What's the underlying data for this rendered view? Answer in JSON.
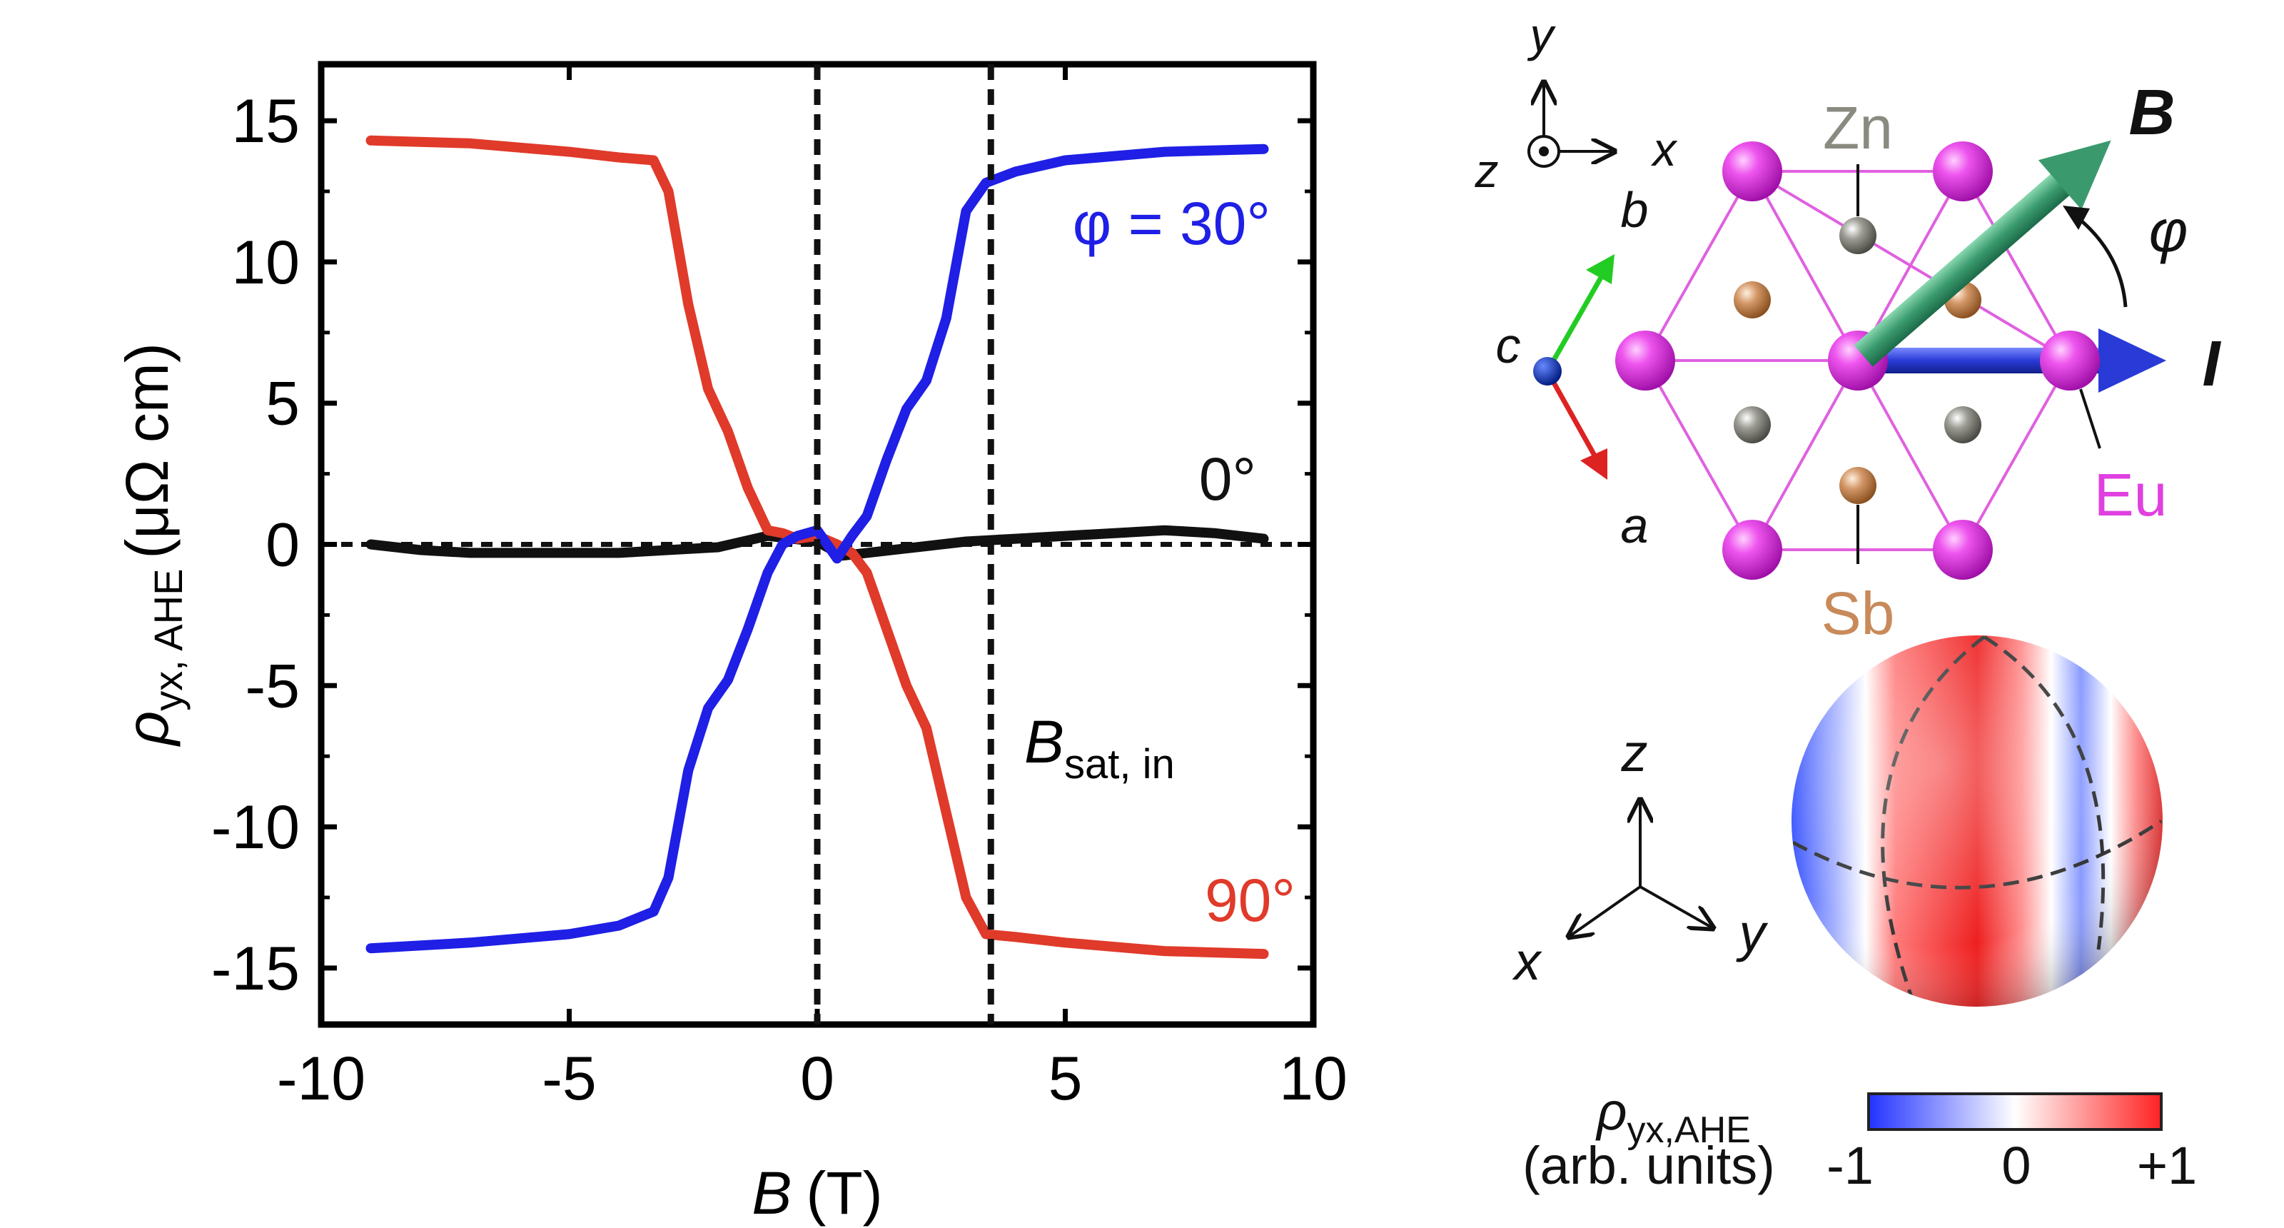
{
  "chart_data": {
    "type": "line",
    "xlabel": {
      "symbol": "B",
      "unit": "(T)"
    },
    "ylabel": {
      "symbol": "ρ",
      "sub": "yx, AHE",
      "unit": "(μΩ cm)"
    },
    "xlim": [
      -10,
      10
    ],
    "ylim": [
      -17,
      17
    ],
    "xticks": [
      -10,
      -5,
      0,
      5,
      10
    ],
    "yticks": [
      15,
      10,
      5,
      0,
      -5,
      -10,
      -15
    ],
    "xtick_labels": [
      "-10",
      "-5",
      "0",
      "5",
      "10"
    ],
    "ytick_labels": [
      "15",
      "10",
      "5",
      "0",
      "-5",
      "-10",
      "-15"
    ],
    "vlines": [
      0,
      3.5
    ],
    "annotation_bsat": {
      "symbol": "B",
      "sub": "sat, in"
    },
    "series": [
      {
        "name": "φ = 30°",
        "color": "#1f1fe6",
        "x": [
          -9,
          -7,
          -5,
          -4,
          -3.3,
          -3.0,
          -2.6,
          -2.2,
          -1.8,
          -1.4,
          -1.0,
          -0.7,
          -0.4,
          0,
          0.4,
          0.7,
          1.0,
          1.4,
          1.8,
          2.2,
          2.6,
          3.0,
          3.4,
          4,
          5,
          7,
          9
        ],
        "y": [
          -14.3,
          -14.1,
          -13.8,
          -13.5,
          -13.0,
          -11.8,
          -8.0,
          -5.8,
          -4.8,
          -3.0,
          -1.0,
          0.0,
          0.3,
          0.5,
          -0.5,
          0.3,
          1.0,
          3.0,
          4.8,
          5.8,
          8.0,
          11.8,
          12.8,
          13.2,
          13.6,
          13.9,
          14.0
        ]
      },
      {
        "name": "90°",
        "color": "#e03a2a",
        "x": [
          -9,
          -7,
          -5,
          -4,
          -3.3,
          -3.0,
          -2.6,
          -2.2,
          -1.8,
          -1.4,
          -1.0,
          -0.7,
          -0.4,
          0,
          0.4,
          0.7,
          1.0,
          1.4,
          1.8,
          2.2,
          2.6,
          3.0,
          3.4,
          4,
          5,
          7,
          9
        ],
        "y": [
          14.3,
          14.2,
          13.9,
          13.7,
          13.6,
          12.5,
          8.5,
          5.5,
          4.0,
          2.0,
          0.5,
          0.4,
          0.2,
          0.3,
          0.0,
          -0.3,
          -1.0,
          -3.0,
          -5.0,
          -6.5,
          -9.5,
          -12.5,
          -13.8,
          -13.9,
          -14.1,
          -14.4,
          -14.5
        ]
      },
      {
        "name": "0°",
        "color": "#111111",
        "x": [
          -9,
          -8,
          -7,
          -6,
          -5,
          -4,
          -3,
          -2,
          -1,
          -0.5,
          0,
          0.5,
          1,
          2,
          3,
          4,
          5,
          6,
          7,
          8,
          9
        ],
        "y": [
          0.0,
          -0.2,
          -0.3,
          -0.3,
          -0.3,
          -0.3,
          -0.2,
          -0.1,
          0.3,
          0.2,
          0.1,
          -0.4,
          -0.3,
          -0.1,
          0.1,
          0.2,
          0.3,
          0.4,
          0.5,
          0.4,
          0.2
        ]
      }
    ]
  },
  "crystal_diagram": {
    "axis_labels": {
      "x": "x",
      "y": "y",
      "z": "z"
    },
    "crystal_axes": {
      "a": "a",
      "b": "b",
      "c": "c"
    },
    "field_label": "B",
    "current_label": "I",
    "angle_label": "φ",
    "atoms": {
      "Zn": "Zn",
      "Sb": "Sb",
      "Eu": "Eu"
    },
    "colors": {
      "Eu": "#e040e0",
      "Zn": "#8a8a80",
      "Sb": "#c88a5a",
      "B_arrow": "#3a9a6e",
      "I_arrow": "#2a3ad6"
    }
  },
  "sphere_panel": {
    "axis_labels": {
      "x": "x",
      "y": "y",
      "z": "z"
    },
    "colorbar": {
      "quantity_symbol": "ρ",
      "quantity_sub": "yx,AHE",
      "units": "(arb. units)",
      "min_label": "-1",
      "mid_label": "0",
      "max_label": "+1",
      "colors": [
        "#2233ff",
        "#ffffff",
        "#ff2222"
      ]
    }
  }
}
